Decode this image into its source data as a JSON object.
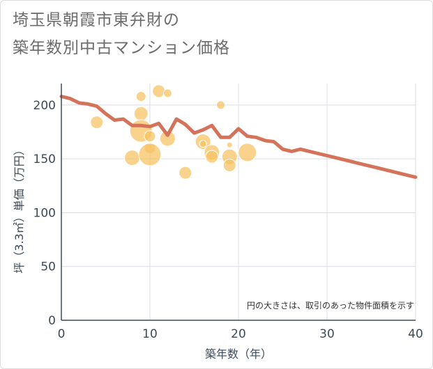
{
  "title_line1": "埼玉県朝霞市東弁財の",
  "title_line2": "築年数別中古マンション価格",
  "colors": {
    "line": "#d4735a",
    "bubble": "#f7c060",
    "grid": "#d9dde3",
    "axis": "#3b4a5a"
  },
  "chart_data": {
    "type": "scatter",
    "xlabel": "築年数（年）",
    "ylabel": "坪（3.3㎡）単価（万円）",
    "xlim": [
      0,
      40
    ],
    "ylim": [
      0,
      220
    ],
    "xticks": [
      0,
      10,
      20,
      30,
      40
    ],
    "yticks": [
      0,
      50,
      100,
      150,
      200
    ],
    "grid": true,
    "note": "円の大きさは、取引のあった物件面積を示す",
    "trend_line": {
      "x": [
        0,
        1,
        2,
        3,
        4,
        5,
        6,
        7,
        8,
        9,
        10,
        11,
        12,
        13,
        14,
        15,
        16,
        17,
        18,
        19,
        20,
        21,
        22,
        23,
        24,
        25,
        26,
        27,
        28,
        29,
        30,
        31,
        32,
        33,
        34,
        35,
        36,
        37,
        38,
        39,
        40
      ],
      "y": [
        208,
        206,
        202,
        201,
        199,
        192,
        186,
        187,
        181,
        181,
        180,
        183,
        172,
        187,
        182,
        174,
        177,
        181,
        170,
        170,
        178,
        171,
        170,
        167,
        166,
        159,
        157,
        159,
        157,
        155,
        153,
        151,
        149,
        147,
        145,
        143,
        141,
        139,
        137,
        135,
        133
      ]
    },
    "bubbles": [
      {
        "x": 4,
        "y": 184,
        "size": 9
      },
      {
        "x": 8,
        "y": 151,
        "size": 11
      },
      {
        "x": 9,
        "y": 208,
        "size": 7
      },
      {
        "x": 9,
        "y": 192,
        "size": 10
      },
      {
        "x": 9,
        "y": 176,
        "size": 16
      },
      {
        "x": 10,
        "y": 171,
        "size": 8
      },
      {
        "x": 10,
        "y": 160,
        "size": 8
      },
      {
        "x": 10,
        "y": 154,
        "size": 16
      },
      {
        "x": 11,
        "y": 213,
        "size": 9
      },
      {
        "x": 12,
        "y": 211,
        "size": 6
      },
      {
        "x": 12,
        "y": 169,
        "size": 11
      },
      {
        "x": 14,
        "y": 137,
        "size": 9
      },
      {
        "x": 16,
        "y": 166,
        "size": 11
      },
      {
        "x": 16,
        "y": 164,
        "size": 5
      },
      {
        "x": 17,
        "y": 156,
        "size": 11
      },
      {
        "x": 17,
        "y": 152,
        "size": 9
      },
      {
        "x": 18,
        "y": 200,
        "size": 6
      },
      {
        "x": 19,
        "y": 163,
        "size": 4
      },
      {
        "x": 19,
        "y": 152,
        "size": 11
      },
      {
        "x": 19,
        "y": 144,
        "size": 9
      },
      {
        "x": 21,
        "y": 156,
        "size": 13
      }
    ]
  }
}
